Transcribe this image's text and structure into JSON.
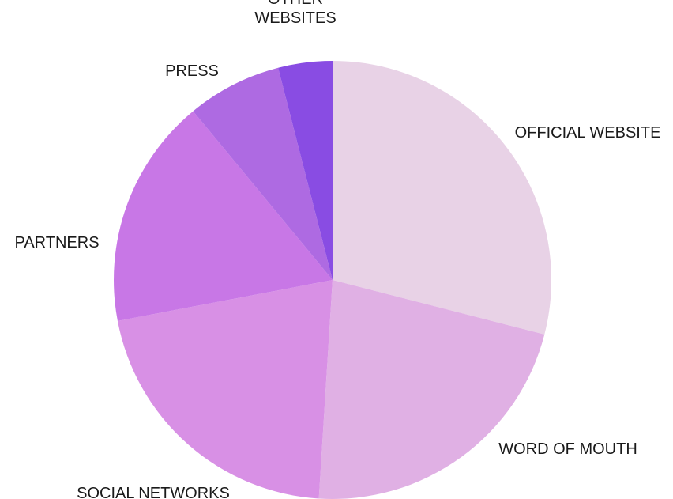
{
  "chart_data": {
    "type": "pie",
    "slices": [
      {
        "label": [
          "OFFICIAL WEBSITE"
        ],
        "value": 29,
        "color": "#e8d2e6"
      },
      {
        "label": [
          "WORD OF MOUTH"
        ],
        "value": 22,
        "color": "#e0b0e4"
      },
      {
        "label": [
          "SOCIAL NETWORKS"
        ],
        "value": 21,
        "color": "#d890e5"
      },
      {
        "label": [
          "PARTNERS"
        ],
        "value": 17,
        "color": "#c877e6"
      },
      {
        "label": [
          "PRESS"
        ],
        "value": 7,
        "color": "#ae6ae2"
      },
      {
        "label": [
          "OTHER",
          "WEBSITES"
        ],
        "value": 4,
        "color": "#894ce3"
      }
    ],
    "start_angle": "12 o'clock",
    "direction": "clockwise",
    "legend": "none"
  }
}
